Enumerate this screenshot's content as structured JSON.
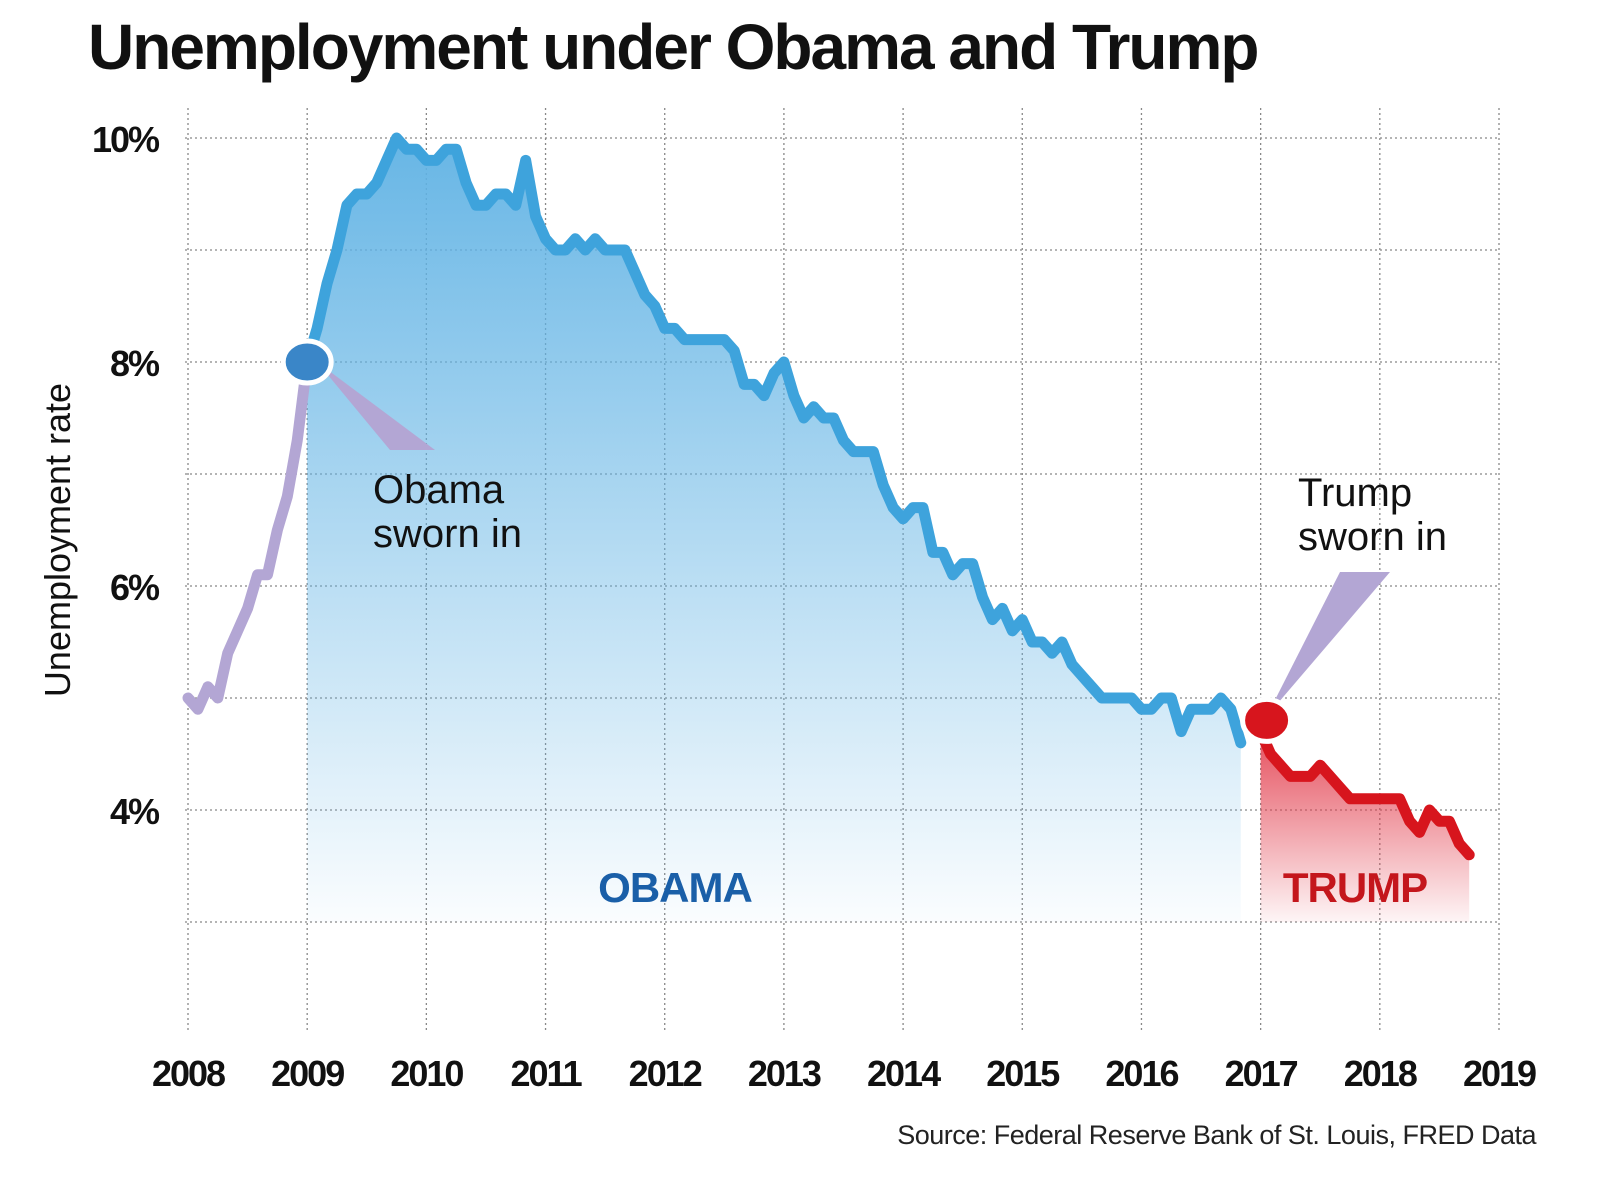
{
  "chart_data": {
    "type": "area",
    "title": "Unemployment under Obama and Trump",
    "ylabel": "Unemployment rate",
    "xlabel": "",
    "source": "Source: Federal Reserve Bank of St. Louis, FRED Data",
    "xlim": [
      2008,
      2019
    ],
    "ylim": [
      2,
      10
    ],
    "x_ticks": [
      "2008",
      "2009",
      "2010",
      "2011",
      "2012",
      "2013",
      "2014",
      "2015",
      "2016",
      "2017",
      "2018",
      "2019"
    ],
    "y_ticks": [
      {
        "value": 10,
        "label": "10%"
      },
      {
        "value": 8,
        "label": "8%"
      },
      {
        "value": 6,
        "label": "6%"
      },
      {
        "value": 4,
        "label": "4%"
      }
    ],
    "grid": true,
    "colors": {
      "pre": "#b3a6d4",
      "obama": "#3ea3dc",
      "obama_label": "#1a5fa8",
      "trump": "#d7151d",
      "trump_label": "#c4161c",
      "obama_marker": "#3a86c8"
    },
    "series": [
      {
        "key": "pre",
        "start": 2008.0,
        "values": [
          5.0,
          4.9,
          5.1,
          5.0,
          5.4,
          5.6,
          5.8,
          6.1,
          6.1,
          6.5,
          6.8,
          7.3,
          8.0
        ]
      },
      {
        "key": "obama",
        "name": "OBAMA",
        "start": 2009.0,
        "values": [
          8.0,
          8.3,
          8.7,
          9.0,
          9.4,
          9.5,
          9.5,
          9.6,
          9.8,
          10.0,
          9.9,
          9.9,
          9.8,
          9.8,
          9.9,
          9.9,
          9.6,
          9.4,
          9.4,
          9.5,
          9.5,
          9.4,
          9.8,
          9.3,
          9.1,
          9.0,
          9.0,
          9.1,
          9.0,
          9.1,
          9.0,
          9.0,
          9.0,
          8.8,
          8.6,
          8.5,
          8.3,
          8.3,
          8.2,
          8.2,
          8.2,
          8.2,
          8.2,
          8.1,
          7.8,
          7.8,
          7.7,
          7.9,
          8.0,
          7.7,
          7.5,
          7.6,
          7.5,
          7.5,
          7.3,
          7.2,
          7.2,
          7.2,
          6.9,
          6.7,
          6.6,
          6.7,
          6.7,
          6.3,
          6.3,
          6.1,
          6.2,
          6.2,
          5.9,
          5.7,
          5.8,
          5.6,
          5.7,
          5.5,
          5.5,
          5.4,
          5.5,
          5.3,
          5.2,
          5.1,
          5.0,
          5.0,
          5.0,
          5.0,
          4.9,
          4.9,
          5.0,
          5.0,
          4.7,
          4.9,
          4.9,
          4.9,
          5.0,
          4.9,
          4.6
        ]
      },
      {
        "key": "trump",
        "name": "TRUMP",
        "start": 2017.0,
        "values": [
          4.7,
          4.5,
          4.4,
          4.3,
          4.3,
          4.3,
          4.4,
          4.3,
          4.2,
          4.1,
          4.1,
          4.1,
          4.1,
          4.1,
          4.1,
          3.9,
          3.8,
          4.0,
          3.9,
          3.9,
          3.7,
          3.6
        ]
      }
    ],
    "annotations": [
      {
        "text_lines": [
          "Obama",
          "sworn in"
        ],
        "x": 2009.0,
        "y": 8.0
      },
      {
        "text_lines": [
          "Trump",
          "sworn in"
        ],
        "x": 2017.05,
        "y": 4.8
      }
    ]
  }
}
